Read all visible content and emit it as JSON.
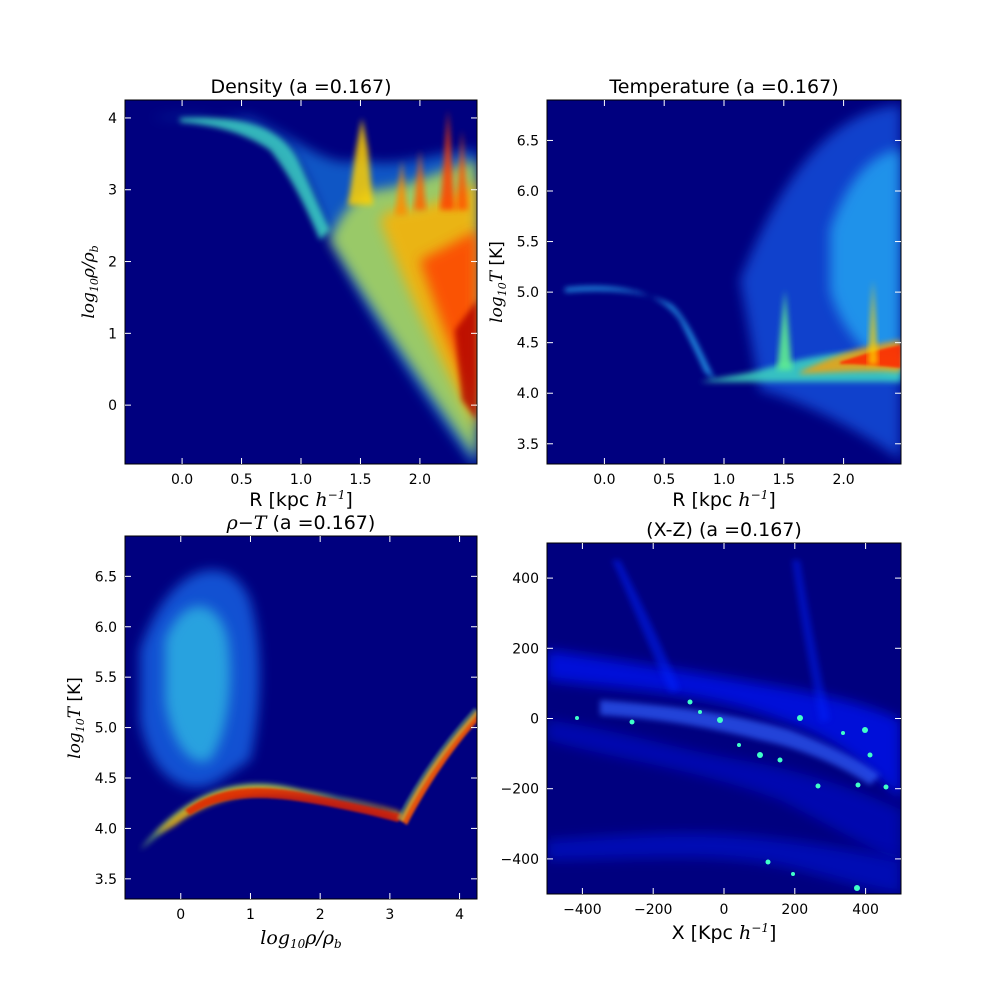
{
  "chart_data": [
    {
      "type": "heatmap",
      "title": "Density (a =0.167)",
      "xlabel": "R [kpc h⁻¹]",
      "ylabel": "log₁₀ρ/ρb",
      "xlim": [
        -0.48,
        2.48
      ],
      "ylim": [
        -0.82,
        4.25
      ],
      "xticks": [
        0.0,
        0.5,
        1.0,
        1.5,
        2.0
      ],
      "xtick_labels": [
        "0.0",
        "0.5",
        "1.0",
        "1.5",
        "2.0"
      ],
      "yticks": [
        0,
        1,
        2,
        3,
        4
      ],
      "ytick_labels": [
        "0",
        "1",
        "2",
        "3",
        "4"
      ],
      "background": "#00007f",
      "colormap": "jet"
    },
    {
      "type": "heatmap",
      "title": "Temperature (a =0.167)",
      "xlabel": "R [kpc h⁻¹]",
      "ylabel": "log₁₀T  [K]",
      "xlim": [
        -0.48,
        2.48
      ],
      "ylim": [
        3.3,
        6.9
      ],
      "xticks": [
        0.0,
        0.5,
        1.0,
        1.5,
        2.0
      ],
      "xtick_labels": [
        "0.0",
        "0.5",
        "1.0",
        "1.5",
        "2.0"
      ],
      "yticks": [
        3.5,
        4.0,
        4.5,
        5.0,
        5.5,
        6.0,
        6.5
      ],
      "ytick_labels": [
        "3.5",
        "4.0",
        "4.5",
        "5.0",
        "5.5",
        "6.0",
        "6.5"
      ],
      "background": "#00007f",
      "colormap": "jet"
    },
    {
      "type": "heatmap",
      "title": "ρ−T (a =0.167)",
      "xlabel": "log₁₀ρ/ρb",
      "ylabel": "log₁₀T  [K]",
      "xlim": [
        -0.8,
        4.25
      ],
      "ylim": [
        3.3,
        6.9
      ],
      "xticks": [
        0,
        1,
        2,
        3,
        4
      ],
      "xtick_labels": [
        "0",
        "1",
        "2",
        "3",
        "4"
      ],
      "yticks": [
        3.5,
        4.0,
        4.5,
        5.0,
        5.5,
        6.0,
        6.5
      ],
      "ytick_labels": [
        "3.5",
        "4.0",
        "4.5",
        "5.0",
        "5.5",
        "6.0",
        "6.5"
      ],
      "background": "#00007f",
      "colormap": "jet"
    },
    {
      "type": "heatmap",
      "title": "(X-Z) (a =0.167)",
      "xlabel": "X [Kpc h⁻¹]",
      "ylabel": "",
      "xlim": [
        -500,
        500
      ],
      "ylim": [
        -500,
        500
      ],
      "xticks": [
        -400,
        -200,
        0,
        200,
        400
      ],
      "xtick_labels": [
        "−400",
        "−200",
        "0",
        "200",
        "400"
      ],
      "yticks": [
        -400,
        -200,
        0,
        200,
        400
      ],
      "ytick_labels": [
        "−400",
        "−200",
        "0",
        "200",
        "400"
      ],
      "background": "#00007f",
      "colormap": "jet"
    }
  ]
}
